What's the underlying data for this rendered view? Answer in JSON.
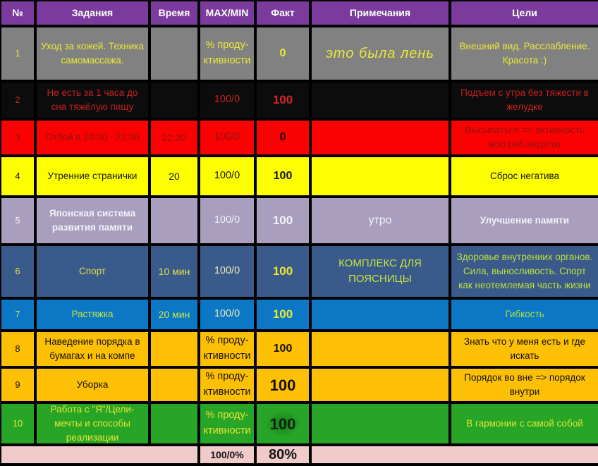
{
  "header": {
    "columns": [
      "№",
      "Задания",
      "Время",
      "MAX/MIN",
      "Факт",
      "Примечания",
      "Цели"
    ]
  },
  "rows": [
    {
      "num": "1",
      "task": "Уход за кожей. Техника самомассажа.",
      "time": "",
      "maxmin": "% проду-\nктивности",
      "fact": "0",
      "notes": "это была лень",
      "goals": "Внешний вид. Расслабление. Красота :)"
    },
    {
      "num": "2",
      "task": "Не есть за 1 часа до сна тяжёлую пищу",
      "time": "",
      "maxmin": "100/0",
      "fact": "100",
      "notes": "",
      "goals": "Подъем с утра без тяжести в желудке"
    },
    {
      "num": "3",
      "task": "Отбой в 20:00 - 21:00",
      "time": "22:30",
      "maxmin": "100/0",
      "fact": "0",
      "notes": "",
      "goals": "Высыпаться => активность всю раб.неделю"
    },
    {
      "num": "4",
      "task": "Утренние странички",
      "time": "20",
      "maxmin": "100/0",
      "fact": "100",
      "notes": "",
      "goals": "Сброс негатива"
    },
    {
      "num": "5",
      "task": "Японская система развития памяти",
      "time": "",
      "maxmin": "100/0",
      "fact": "100",
      "notes": "утро",
      "goals": "Улучшение памяти"
    },
    {
      "num": "6",
      "task": "Спорт",
      "time": "10 мин",
      "maxmin": "100/0",
      "fact": "100",
      "notes": "КОМПЛЕКС ДЛЯ ПОЯСНИЦЫ",
      "goals": "Здоровье внутрениих органов. Сила, выносливость. Спорт как неотемлемая часть жизни"
    },
    {
      "num": "7",
      "task": "Растяжка",
      "time": "20 мин",
      "maxmin": "100/0",
      "fact": "100",
      "notes": "",
      "goals": "Гибкость"
    },
    {
      "num": "8",
      "task": "Наведение порядка в бумагах и на компе",
      "time": "",
      "maxmin": "% проду-\nктивности",
      "fact": "100",
      "notes": "",
      "goals": "Знать что у меня есть и где искать"
    },
    {
      "num": "9",
      "task": "Уборка",
      "time": "",
      "maxmin": "% проду-\nктивности",
      "fact": "100",
      "notes": "",
      "goals": "Порядок во вне => порядок внутри"
    },
    {
      "num": "10",
      "task": "Работа с \"Я\"/Цели-мечты и способы реализации",
      "time": "",
      "maxmin": "% проду-\nктивности",
      "fact": "100",
      "notes": "",
      "goals": "В гармонии с самой собой"
    }
  ],
  "footer": {
    "maxmin": "100/0%",
    "fact": "80%"
  },
  "colors": {
    "header_bg": "#7A3B9D",
    "row1_bg": "#818181",
    "row2_bg": "#0C0C0C",
    "row3_bg": "#FB0202",
    "row4_bg": "#FEFE02",
    "row5_bg": "#A99EBD",
    "row6_bg": "#3A5A8C",
    "row7_bg": "#0B77C5",
    "row8_bg": "#FDC004",
    "row9_bg": "#FDC004",
    "row10_bg": "#27A527",
    "footer_bg": "#F0CBCA",
    "accent_yellow_text": "#EAE838",
    "red_text": "#C32020",
    "dark_red_text": "#8E1212",
    "grid_line": "#000000"
  }
}
